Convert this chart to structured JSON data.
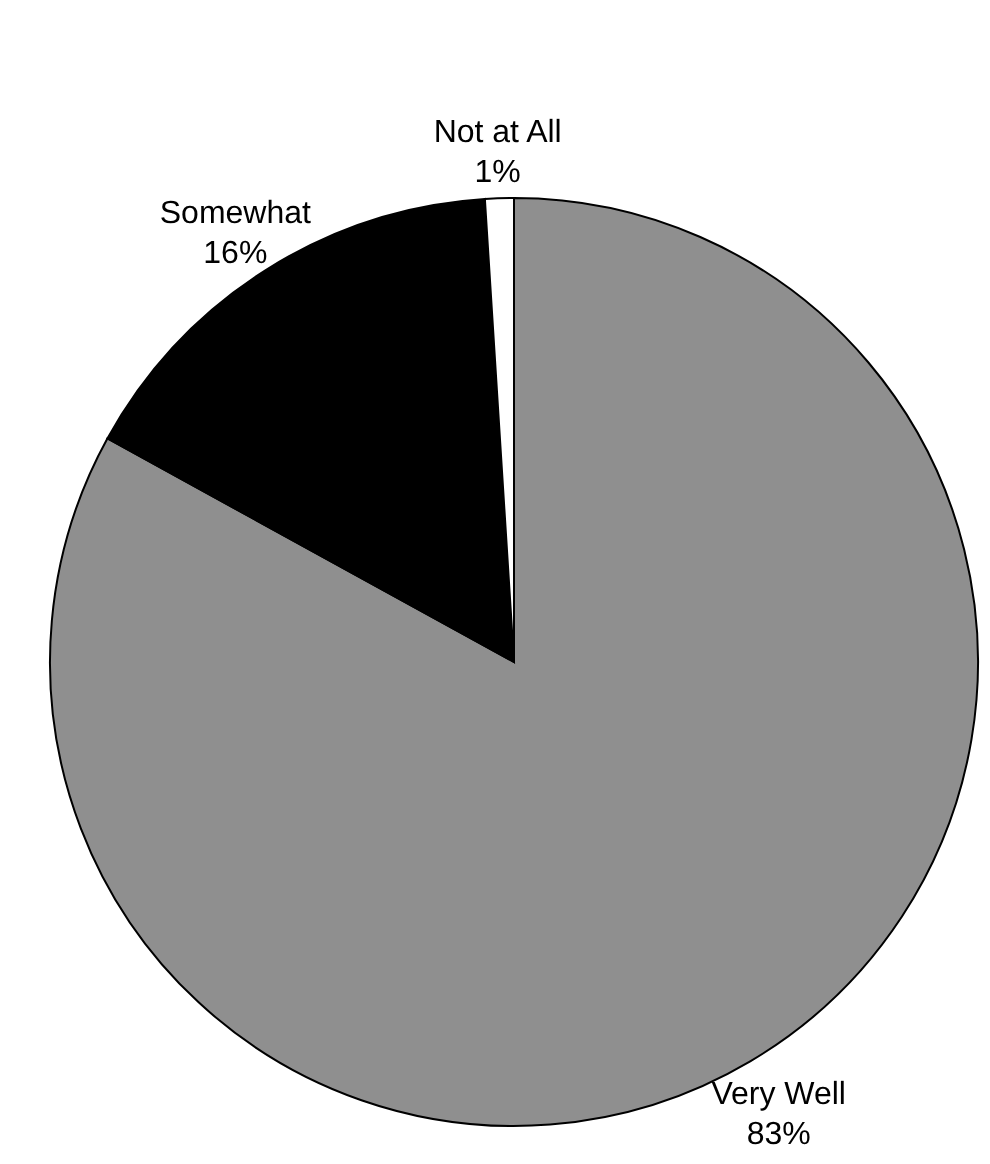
{
  "chart_data": {
    "type": "pie",
    "categories": [
      "Very Well",
      "Somewhat",
      "Not at All"
    ],
    "values": [
      83,
      16,
      1
    ],
    "value_labels": [
      "83%",
      "16%",
      "1%"
    ],
    "colors": [
      "#8f8f8f",
      "#000000",
      "#ffffff"
    ]
  }
}
